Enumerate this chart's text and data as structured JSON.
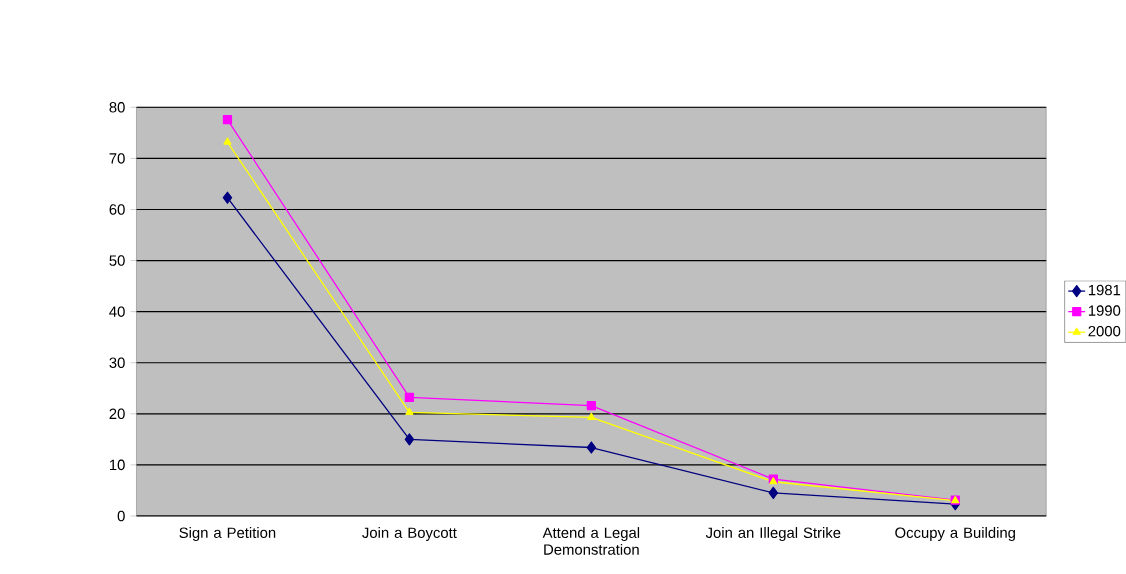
{
  "chart_data": {
    "type": "line",
    "categories": [
      "Sign a Petition",
      "Join a Boycott",
      "Attend a Legal Demonstration",
      "Join an Illegal Strike",
      "Occupy a Building"
    ],
    "series": [
      {
        "name": "1981",
        "color": "#000080",
        "marker": "diamond",
        "values": [
          62.3,
          15.0,
          13.4,
          4.5,
          2.3
        ]
      },
      {
        "name": "1990",
        "color": "#ff00ff",
        "marker": "square",
        "values": [
          77.6,
          23.2,
          21.6,
          7.2,
          3.1
        ]
      },
      {
        "name": "2000",
        "color": "#ffff00",
        "marker": "triangle",
        "values": [
          73.2,
          20.3,
          19.3,
          6.7,
          3.0
        ]
      }
    ],
    "ylim": [
      0,
      80
    ],
    "yticks": [
      0,
      10,
      20,
      30,
      40,
      50,
      60,
      70,
      80
    ],
    "grid": "y",
    "legend": "right"
  }
}
